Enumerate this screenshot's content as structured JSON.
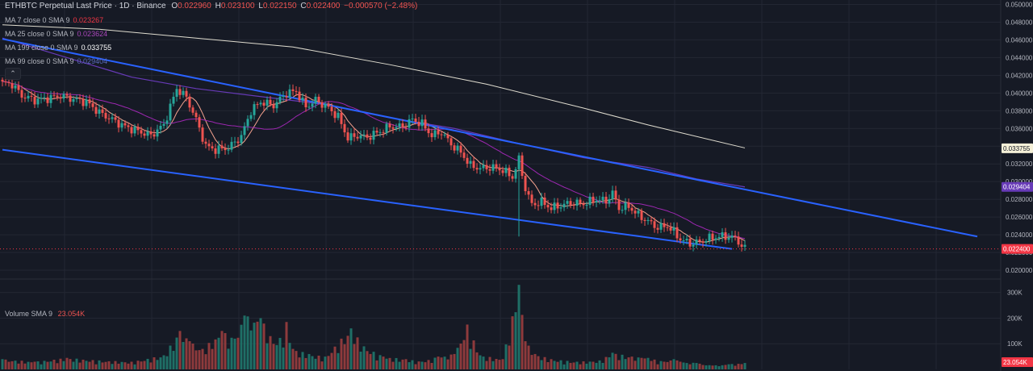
{
  "header": {
    "title": "ETHBTC Perpetual Last Price · 1D · Binance",
    "o_label": "O",
    "o": "0.022960",
    "h_label": "H",
    "h": "0.023100",
    "l_label": "L",
    "l": "0.022150",
    "c_label": "C",
    "c": "0.022400",
    "change": "−0.000570 (−2.48%)"
  },
  "indicators": [
    {
      "label": "MA 7 close 0 SMA 9",
      "value": "0.023267",
      "color": "#f23645"
    },
    {
      "label": "MA 25 close 0 SMA 9",
      "value": "0.023624",
      "color": "#9c27b0"
    },
    {
      "label": "MA 199 close 0 SMA 9",
      "value": "0.033755",
      "color": "#e0ddd0"
    },
    {
      "label": "MA 99 close 0 SMA 9",
      "value": "0.029404",
      "color": "#673ab7"
    }
  ],
  "collapse_glyph": "⌃",
  "volume_legend": {
    "label": "Volume SMA 9",
    "value": "23.054K"
  },
  "price_tags": [
    {
      "value": "0.033755",
      "price": 0.033755,
      "bg": "#f5f0d8",
      "fg": "#131722"
    },
    {
      "value": "0.029404",
      "price": 0.029404,
      "bg": "#673ab7",
      "fg": "#ffffff"
    },
    {
      "value": "0.022400",
      "price": 0.0224,
      "bg": "#f23645",
      "fg": "#ffffff"
    }
  ],
  "volume_tag": {
    "value": "23.054K",
    "bg": "#f23645",
    "fg": "#ffffff"
  },
  "colors": {
    "up": "#26a69a",
    "down": "#ef5350",
    "channel": "#2962ff",
    "grid": "#232733"
  },
  "chart_data": {
    "type": "candlestick",
    "price_axis": {
      "ylim": [
        0.019,
        0.0505
      ],
      "ticks": [
        "0.050000",
        "0.048000",
        "0.046000",
        "0.044000",
        "0.042000",
        "0.040000",
        "0.038000",
        "0.036000",
        "0.034000",
        "0.032000",
        "0.030000",
        "0.028000",
        "0.026000",
        "0.024000",
        "0.022000",
        "0.020000"
      ],
      "tick_values": [
        0.05,
        0.048,
        0.046,
        0.044,
        0.042,
        0.04,
        0.038,
        0.036,
        0.034,
        0.032,
        0.03,
        0.028,
        0.026,
        0.024,
        0.022,
        0.02
      ]
    },
    "volume_axis": {
      "ticks": [
        "300K",
        "200K",
        "100K"
      ],
      "tick_values": [
        300000,
        200000,
        100000
      ],
      "ylim": [
        0,
        340000
      ]
    },
    "close_anchors": [
      [
        0,
        0.0411
      ],
      [
        3,
        0.041
      ],
      [
        6,
        0.0397
      ],
      [
        10,
        0.0392
      ],
      [
        14,
        0.0394
      ],
      [
        18,
        0.0397
      ],
      [
        22,
        0.0393
      ],
      [
        26,
        0.039
      ],
      [
        30,
        0.0378
      ],
      [
        34,
        0.037
      ],
      [
        38,
        0.0362
      ],
      [
        42,
        0.0357
      ],
      [
        46,
        0.0352
      ],
      [
        50,
        0.0364
      ],
      [
        54,
        0.0405
      ],
      [
        57,
        0.0395
      ],
      [
        60,
        0.037
      ],
      [
        63,
        0.034
      ],
      [
        66,
        0.0336
      ],
      [
        70,
        0.0338
      ],
      [
        74,
        0.0351
      ],
      [
        77,
        0.038
      ],
      [
        80,
        0.039
      ],
      [
        84,
        0.0386
      ],
      [
        88,
        0.04
      ],
      [
        91,
        0.0402
      ],
      [
        94,
        0.0384
      ],
      [
        97,
        0.0392
      ],
      [
        101,
        0.0383
      ],
      [
        104,
        0.0373
      ],
      [
        107,
        0.0349
      ],
      [
        110,
        0.0352
      ],
      [
        113,
        0.035
      ],
      [
        116,
        0.0355
      ],
      [
        120,
        0.0362
      ],
      [
        124,
        0.0362
      ],
      [
        127,
        0.037
      ],
      [
        130,
        0.0365
      ],
      [
        133,
        0.0352
      ],
      [
        136,
        0.0356
      ],
      [
        139,
        0.0342
      ],
      [
        142,
        0.0333
      ],
      [
        145,
        0.0318
      ],
      [
        148,
        0.0315
      ],
      [
        152,
        0.0316
      ],
      [
        155,
        0.0313
      ],
      [
        158,
        0.0305
      ],
      [
        160,
        0.0325
      ],
      [
        162,
        0.0292
      ],
      [
        164,
        0.0274
      ],
      [
        167,
        0.0277
      ],
      [
        170,
        0.027
      ],
      [
        173,
        0.0273
      ],
      [
        176,
        0.0276
      ],
      [
        180,
        0.0275
      ],
      [
        184,
        0.028
      ],
      [
        187,
        0.0278
      ],
      [
        189,
        0.0287
      ],
      [
        191,
        0.027
      ],
      [
        194,
        0.0272
      ],
      [
        197,
        0.0262
      ],
      [
        200,
        0.0255
      ],
      [
        203,
        0.0248
      ],
      [
        206,
        0.025
      ],
      [
        208,
        0.0243
      ],
      [
        210,
        0.0235
      ],
      [
        213,
        0.023
      ],
      [
        216,
        0.0232
      ],
      [
        219,
        0.0236
      ],
      [
        222,
        0.0238
      ],
      [
        225,
        0.0238
      ],
      [
        227,
        0.0236
      ],
      [
        230,
        0.0224
      ]
    ],
    "spike_lows": [
      [
        160,
        0.0238
      ]
    ],
    "ma199": [
      [
        0,
        0.0477
      ],
      [
        30,
        0.0472
      ],
      [
        60,
        0.0462
      ],
      [
        90,
        0.0452
      ],
      [
        120,
        0.0432
      ],
      [
        150,
        0.041
      ],
      [
        180,
        0.0383
      ],
      [
        200,
        0.0364
      ],
      [
        230,
        0.0338
      ]
    ],
    "ma99": [
      [
        0,
        0.0462
      ],
      [
        20,
        0.044
      ],
      [
        40,
        0.0418
      ],
      [
        60,
        0.0405
      ],
      [
        80,
        0.0396
      ],
      [
        100,
        0.0387
      ],
      [
        120,
        0.0372
      ],
      [
        140,
        0.036
      ],
      [
        160,
        0.0343
      ],
      [
        180,
        0.0327
      ],
      [
        200,
        0.0316
      ],
      [
        215,
        0.0303
      ],
      [
        230,
        0.0294
      ]
    ],
    "channel_upper": [
      [
        0,
        0.0461
      ],
      [
        302,
        0.0238
      ]
    ],
    "channel_lower": [
      [
        0,
        0.0336
      ],
      [
        226,
        0.0224
      ]
    ],
    "volume_bars": [
      [
        0,
        40000
      ],
      [
        10,
        30000
      ],
      [
        20,
        45000
      ],
      [
        30,
        35000
      ],
      [
        40,
        30000
      ],
      [
        50,
        55000
      ],
      [
        55,
        150000
      ],
      [
        58,
        110000
      ],
      [
        62,
        80000
      ],
      [
        68,
        150000
      ],
      [
        72,
        120000
      ],
      [
        75,
        210000
      ],
      [
        80,
        200000
      ],
      [
        85,
        95000
      ],
      [
        88,
        185000
      ],
      [
        90,
        80000
      ],
      [
        95,
        60000
      ],
      [
        100,
        50000
      ],
      [
        105,
        120000
      ],
      [
        108,
        160000
      ],
      [
        112,
        90000
      ],
      [
        118,
        50000
      ],
      [
        125,
        40000
      ],
      [
        130,
        30000
      ],
      [
        135,
        50000
      ],
      [
        140,
        60000
      ],
      [
        144,
        175000
      ],
      [
        148,
        55000
      ],
      [
        155,
        40000
      ],
      [
        160,
        330000
      ],
      [
        162,
        110000
      ],
      [
        165,
        60000
      ],
      [
        170,
        40000
      ],
      [
        178,
        30000
      ],
      [
        185,
        35000
      ],
      [
        189,
        65000
      ],
      [
        195,
        50000
      ],
      [
        198,
        45000
      ],
      [
        200,
        45000
      ],
      [
        205,
        30000
      ],
      [
        208,
        40000
      ],
      [
        210,
        30000
      ],
      [
        215,
        25000
      ],
      [
        220,
        15000
      ],
      [
        225,
        20000
      ],
      [
        230,
        25000
      ]
    ],
    "bars_count": 231
  }
}
